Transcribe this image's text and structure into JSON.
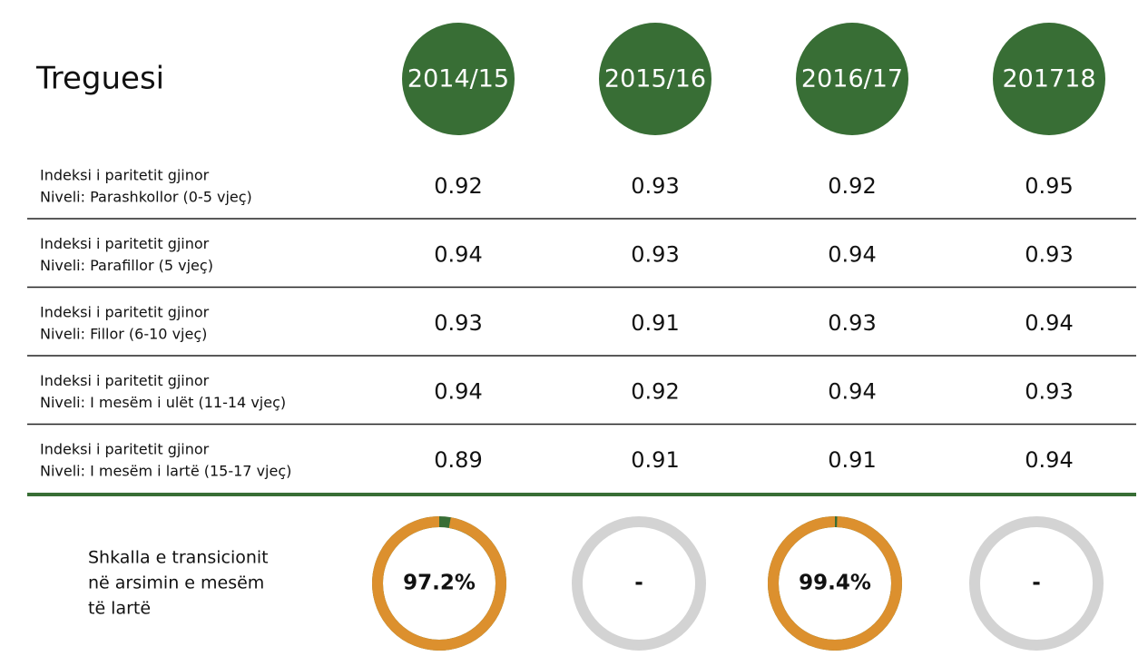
{
  "header": {
    "title": "Treguesi",
    "years": [
      "2014/15",
      "2015/16",
      "2016/17",
      "201718"
    ]
  },
  "table": {
    "rows": [
      {
        "label": [
          "Indeksi i paritetit gjinor",
          "Niveli: Parashkollor (0-5 vjeç)"
        ],
        "values": [
          0.92,
          0.93,
          0.92,
          0.95
        ]
      },
      {
        "label": [
          "Indeksi i paritetit gjinor",
          "Niveli: Parafillor (5 vjeç)"
        ],
        "values": [
          0.94,
          0.93,
          0.94,
          0.93
        ]
      },
      {
        "label": [
          "Indeksi i paritetit gjinor",
          "Niveli: Fillor (6-10 vjeç)"
        ],
        "values": [
          0.93,
          0.91,
          0.93,
          0.94
        ]
      },
      {
        "label": [
          "Indeksi i paritetit gjinor",
          "Niveli: I mesëm i ulët (11-14 vjeç)"
        ],
        "values": [
          0.94,
          0.92,
          0.94,
          0.93
        ]
      },
      {
        "label": [
          "Indeksi i paritetit gjinor",
          "Niveli: I mesëm i lartë (15-17 vjeç)"
        ],
        "values": [
          0.89,
          0.91,
          0.91,
          0.94
        ]
      }
    ]
  },
  "transition": {
    "label": [
      "Shkalla e transicionit",
      "në arsimin e mesëm",
      "të lartë"
    ],
    "values": [
      97.2,
      null,
      99.4,
      null
    ],
    "value_labels": [
      "97.2%",
      "-",
      "99.4%",
      "-"
    ]
  }
}
